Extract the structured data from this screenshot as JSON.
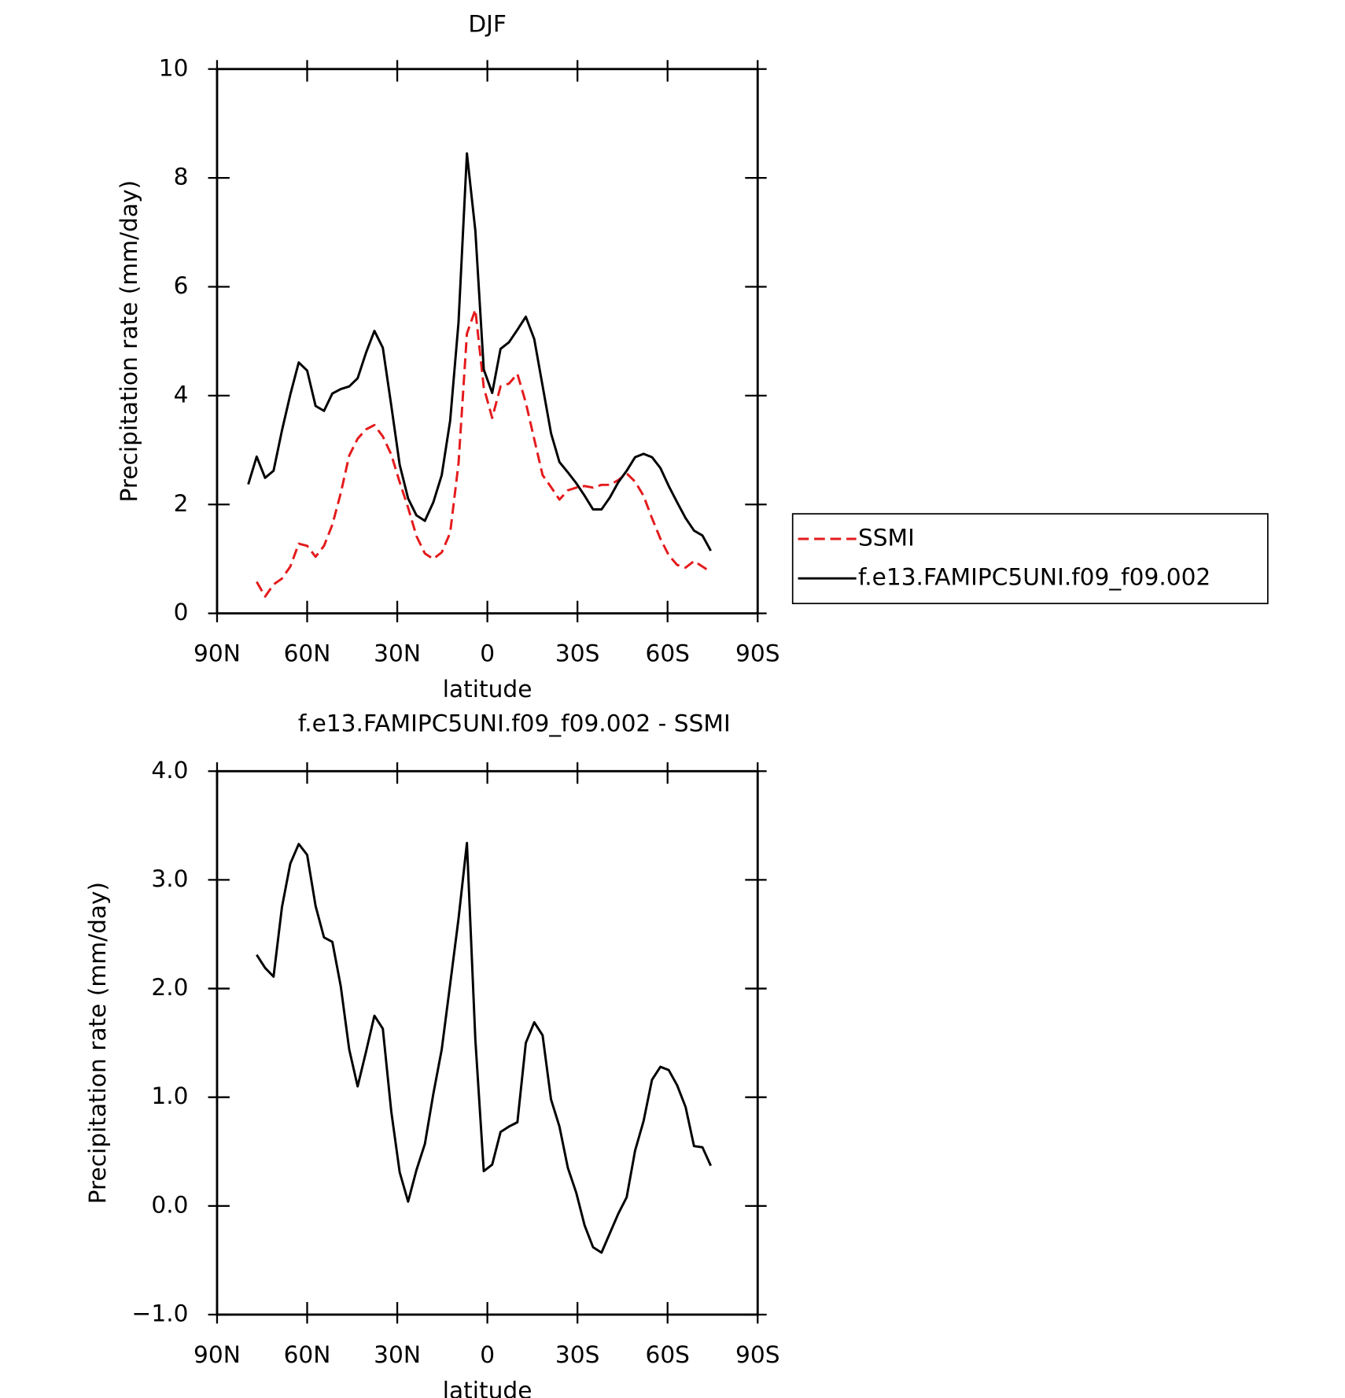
{
  "chart_data": [
    {
      "type": "line",
      "title": "DJF",
      "x_label": "latitude",
      "y_label": "Precipitation rate (mm/day)",
      "x": [
        79.6,
        76.8,
        74.0,
        71.2,
        68.4,
        65.6,
        62.8,
        60.0,
        57.2,
        54.4,
        51.6,
        48.8,
        46.0,
        43.2,
        40.4,
        37.6,
        34.8,
        32.0,
        29.2,
        26.4,
        23.6,
        20.8,
        18.0,
        15.2,
        12.4,
        9.6,
        6.8,
        4.0,
        1.2,
        -1.6,
        -4.4,
        -7.2,
        -10.0,
        -12.8,
        -15.6,
        -18.4,
        -21.2,
        -24.0,
        -26.8,
        -29.6,
        -32.4,
        -35.2,
        -38.0,
        -40.8,
        -43.6,
        -46.4,
        -49.2,
        -52.0,
        -54.8,
        -57.6,
        -60.4,
        -63.2,
        -66.0,
        -68.8,
        -71.6,
        -74.4
      ],
      "series": [
        {
          "name": "SSMI",
          "color": "#e41a1c",
          "dashed": true,
          "values": [
            null,
            0.58,
            0.31,
            0.53,
            0.64,
            0.86,
            1.28,
            1.24,
            1.04,
            1.24,
            1.63,
            2.21,
            2.9,
            3.21,
            3.38,
            3.46,
            3.25,
            2.92,
            2.41,
            1.94,
            1.42,
            1.1,
            1.0,
            1.12,
            1.48,
            2.75,
            5.14,
            5.58,
            4.15,
            3.59,
            4.17,
            4.22,
            4.4,
            3.87,
            3.2,
            2.54,
            2.32,
            2.09,
            2.26,
            2.31,
            2.34,
            2.31,
            2.36,
            2.36,
            2.45,
            2.57,
            2.42,
            2.16,
            1.75,
            1.37,
            1.07,
            0.89,
            0.84,
            0.96,
            0.86,
            0.76
          ]
        },
        {
          "name": "f.e13.FAMIPC5UNI.f09_f09.002",
          "color": "#000000",
          "dashed": false,
          "values": [
            2.37,
            2.88,
            2.49,
            2.62,
            3.36,
            4.02,
            4.61,
            4.46,
            3.81,
            3.72,
            4.04,
            4.12,
            4.17,
            4.32,
            4.79,
            5.19,
            4.88,
            3.82,
            2.73,
            2.11,
            1.8,
            1.7,
            2.04,
            2.54,
            3.54,
            5.34,
            8.45,
            7.03,
            4.48,
            4.05,
            4.86,
            4.98,
            5.21,
            5.45,
            5.04,
            4.18,
            3.31,
            2.78,
            2.59,
            2.39,
            2.16,
            1.91,
            1.91,
            2.13,
            2.41,
            2.62,
            2.87,
            2.93,
            2.87,
            2.67,
            2.34,
            2.04,
            1.75,
            1.52,
            1.43,
            1.15
          ]
        }
      ],
      "xlim": [
        90,
        -90
      ],
      "xticks": [
        {
          "value": 90,
          "label": "90N"
        },
        {
          "value": 60,
          "label": "60N"
        },
        {
          "value": 30,
          "label": "30N"
        },
        0,
        {
          "value": -30,
          "label": "30S"
        },
        {
          "value": -60,
          "label": "60S"
        },
        {
          "value": -90,
          "label": "90S"
        }
      ],
      "ylim": [
        0,
        10
      ],
      "yticks": [
        0,
        2,
        4,
        6,
        8,
        10
      ],
      "legend": "outside-right"
    },
    {
      "type": "line",
      "title": "f.e13.FAMIPC5UNI.f09_f09.002 - SSMI",
      "x_label": "latitude",
      "y_label": "Precipitation rate (mm/day)",
      "x": [
        79.6,
        76.8,
        74.0,
        71.2,
        68.4,
        65.6,
        62.8,
        60.0,
        57.2,
        54.4,
        51.6,
        48.8,
        46.0,
        43.2,
        40.4,
        37.6,
        34.8,
        32.0,
        29.2,
        26.4,
        23.6,
        20.8,
        18.0,
        15.2,
        12.4,
        9.6,
        6.8,
        4.0,
        1.2,
        -1.6,
        -4.4,
        -7.2,
        -10.0,
        -12.8,
        -15.6,
        -18.4,
        -21.2,
        -24.0,
        -26.8,
        -29.6,
        -32.4,
        -35.2,
        -38.0,
        -40.8,
        -43.6,
        -46.4,
        -49.2,
        -52.0,
        -54.8,
        -57.6,
        -60.4,
        -63.2,
        -66.0,
        -68.8,
        -71.6,
        -74.4
      ],
      "color": "#000000",
      "values": [
        null,
        2.31,
        2.19,
        2.11,
        2.75,
        3.15,
        3.33,
        3.23,
        2.76,
        2.47,
        2.43,
        2.02,
        1.44,
        1.1,
        1.42,
        1.75,
        1.63,
        0.87,
        0.31,
        0.04,
        0.33,
        0.57,
        1.03,
        1.44,
        2.04,
        2.64,
        3.34,
        1.53,
        0.32,
        0.38,
        0.68,
        0.73,
        0.77,
        1.5,
        1.69,
        1.57,
        0.98,
        0.73,
        0.35,
        0.12,
        -0.18,
        -0.38,
        -0.43,
        -0.25,
        -0.07,
        0.08,
        0.51,
        0.78,
        1.16,
        1.28,
        1.25,
        1.11,
        0.91,
        0.55,
        0.54,
        0.37
      ],
      "xlim": [
        90,
        -90
      ],
      "xticks": [
        {
          "value": 90,
          "label": "90N"
        },
        {
          "value": 60,
          "label": "60N"
        },
        {
          "value": 30,
          "label": "30N"
        },
        0,
        {
          "value": -30,
          "label": "30S"
        },
        {
          "value": -60,
          "label": "60S"
        },
        {
          "value": -90,
          "label": "90S"
        }
      ],
      "ylim": [
        -1,
        4
      ],
      "yticks": [
        {
          "value": -1,
          "label": "−1.0"
        },
        {
          "value": 0,
          "label": "0.0"
        },
        {
          "value": 1,
          "label": "1.0"
        },
        {
          "value": 2,
          "label": "2.0"
        },
        {
          "value": 3,
          "label": "3.0"
        },
        {
          "value": 4,
          "label": "4.0"
        }
      ]
    }
  ]
}
